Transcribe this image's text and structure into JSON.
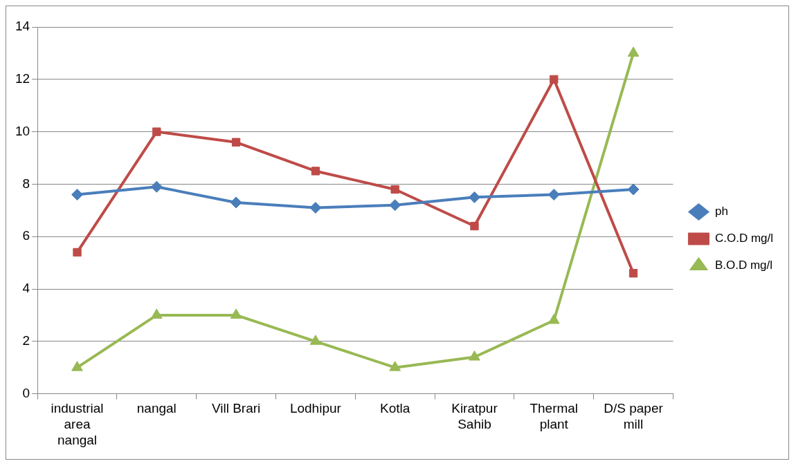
{
  "chart_data": {
    "type": "line",
    "categories": [
      "industrial area nangal",
      "nangal",
      "Vill Brari",
      "Lodhipur",
      "Kotla",
      "Kiratpur Sahib",
      "Thermal plant",
      "D/S paper mill"
    ],
    "series": [
      {
        "name": "ph",
        "color": "#4a7ebb",
        "marker": "diamond",
        "values": [
          7.6,
          7.9,
          7.3,
          7.1,
          7.2,
          7.5,
          7.6,
          7.8
        ]
      },
      {
        "name": "C.O.D mg/l",
        "color": "#be4b48",
        "marker": "square",
        "values": [
          5.4,
          10,
          9.6,
          8.5,
          7.8,
          6.4,
          12,
          4.6
        ]
      },
      {
        "name": "B.O.D mg/l",
        "color": "#98b954",
        "marker": "triangle",
        "values": [
          1,
          3,
          3,
          2,
          1,
          1.4,
          2.8,
          13
        ]
      }
    ],
    "ylim": [
      0,
      14
    ],
    "yticks": [
      0,
      2,
      4,
      6,
      8,
      10,
      12,
      14
    ],
    "grid": "y",
    "legend": "right",
    "line_style": "solid"
  }
}
